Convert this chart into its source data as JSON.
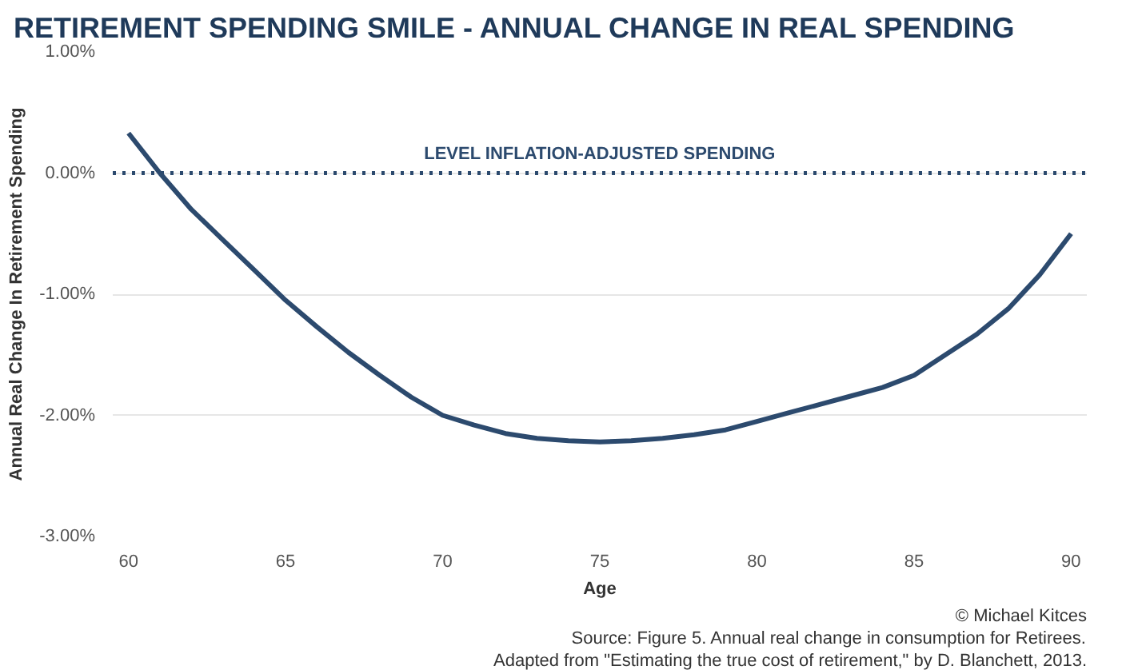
{
  "chart_data": {
    "type": "line",
    "title": "RETIREMENT SPENDING SMILE - ANNUAL CHANGE IN REAL SPENDING",
    "xlabel": "Age",
    "ylabel": "Annual Real Change In Retirement Spending",
    "x": [
      60,
      61,
      62,
      63,
      64,
      65,
      66,
      67,
      68,
      69,
      70,
      71,
      72,
      73,
      74,
      75,
      76,
      77,
      78,
      79,
      80,
      81,
      82,
      83,
      84,
      85,
      86,
      87,
      88,
      89,
      90
    ],
    "series": [
      {
        "color": "#2c4a6e",
        "values": [
          0.33,
          0.0,
          -0.3,
          -0.55,
          -0.8,
          -1.05,
          -1.27,
          -1.48,
          -1.67,
          -1.85,
          -2.0,
          -2.08,
          -2.15,
          -2.19,
          -2.21,
          -2.22,
          -2.21,
          -2.19,
          -2.16,
          -2.12,
          -2.05,
          -1.98,
          -1.91,
          -1.84,
          -1.77,
          -1.67,
          -1.5,
          -1.33,
          -1.12,
          -0.84,
          -0.5
        ]
      }
    ],
    "xlim": [
      59.5,
      90.5
    ],
    "xticks": [
      60,
      65,
      70,
      75,
      80,
      85,
      90
    ],
    "ylim": [
      -3,
      1
    ],
    "yticks": [
      {
        "value": 1,
        "label": "1.00%"
      },
      {
        "value": 0,
        "label": "0.00%"
      },
      {
        "value": -1,
        "label": "-1.00%"
      },
      {
        "value": -2,
        "label": "-2.00%"
      },
      {
        "value": -3,
        "label": "-3.00%"
      }
    ],
    "grid": "y",
    "marker": "none",
    "line_style": "solid",
    "ref_lines": [
      {
        "axis": "y",
        "value": 0,
        "label": "LEVEL INFLATION-ADJUSTED SPENDING",
        "color": "#2c4a6e",
        "line_style": "dotted"
      }
    ],
    "annotations": [
      "© Michael Kitces",
      "Source: Figure 5. Annual real change in consumption for Retirees.",
      "Adapted from \"Estimating the true cost of retirement,\" by D. Blanchett, 2013."
    ]
  }
}
